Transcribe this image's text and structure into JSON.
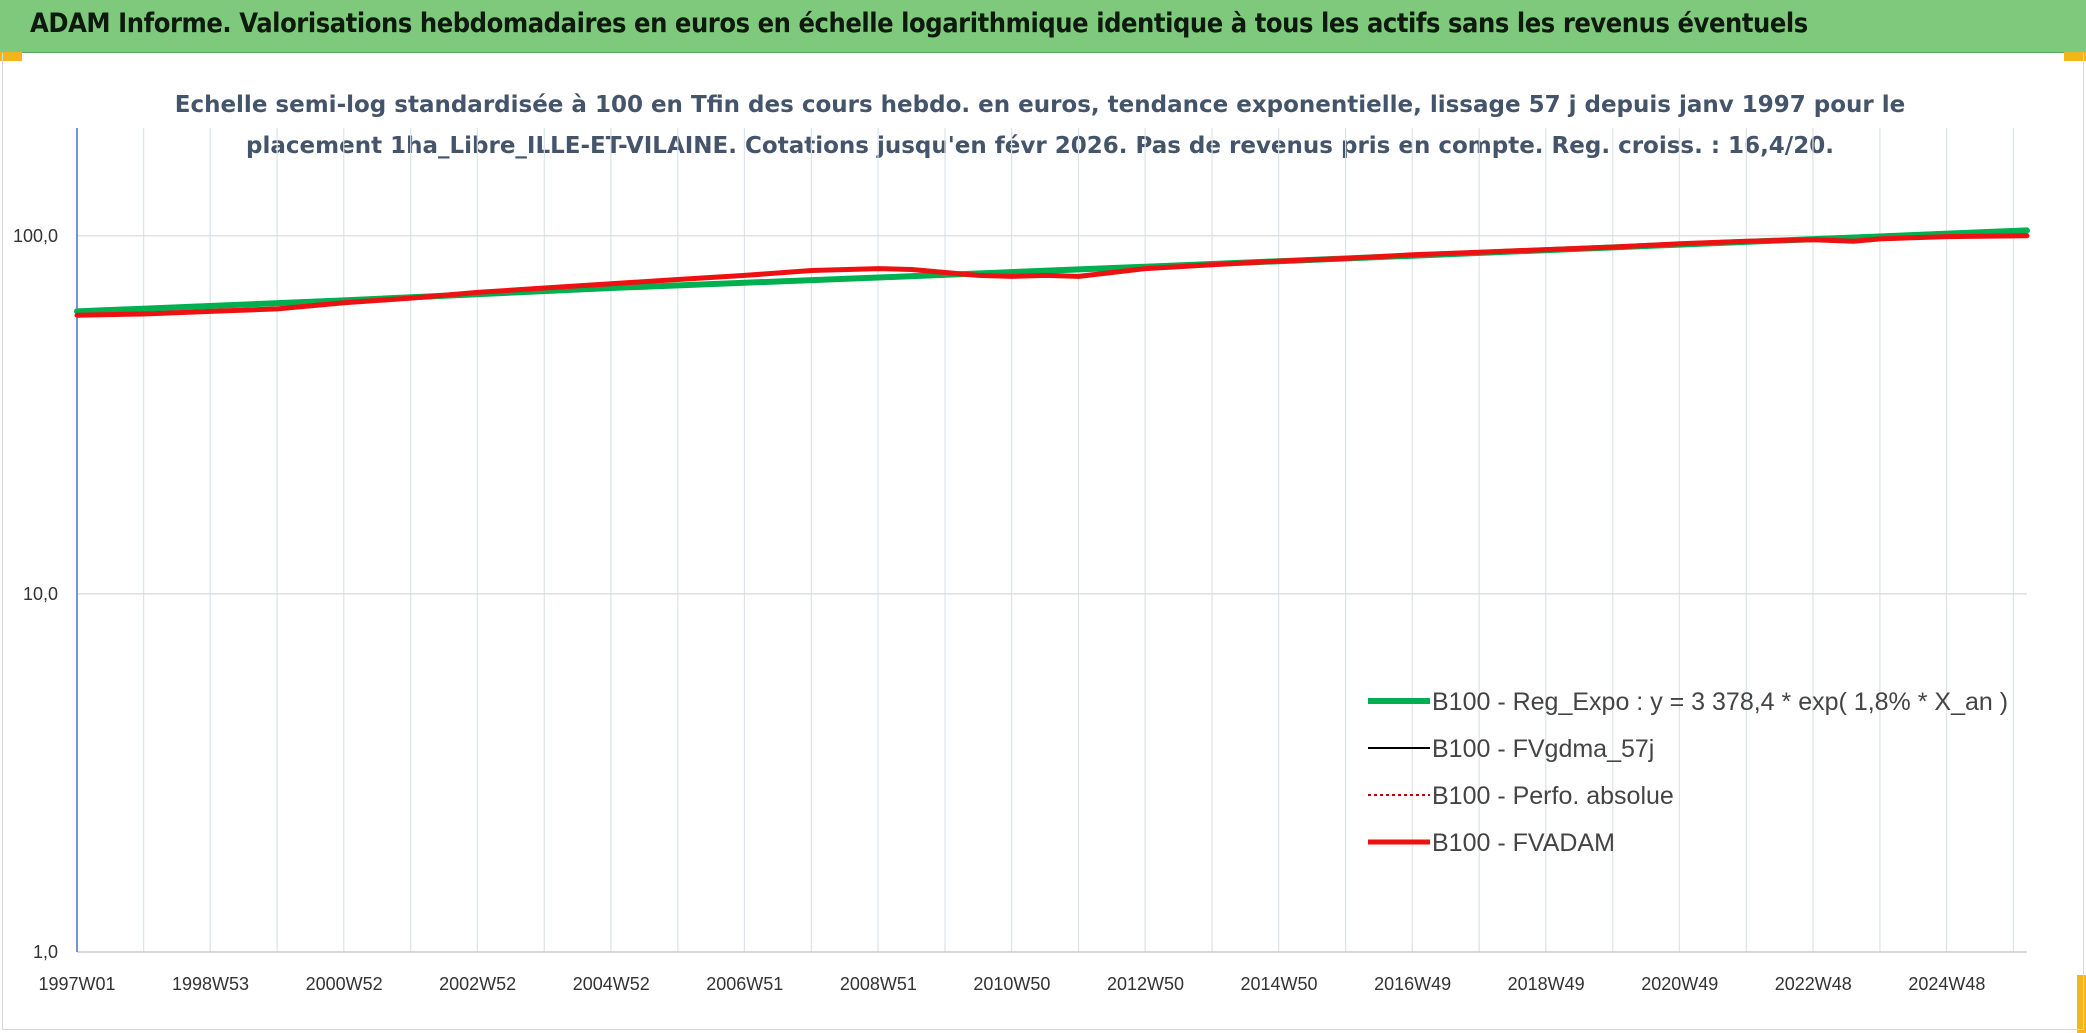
{
  "header": {
    "title": "ADAM Informe. Valorisations hebdomadaires en euros en échelle logarithmique identique à tous les actifs sans les revenus éventuels"
  },
  "colors": {
    "header_bg": "#7fc97c",
    "corner_accent": "#f2b51c",
    "reg_expo": "#00b050",
    "fvgdma": "#000000",
    "perfo": "#c00000",
    "fvadam": "#ee1111"
  },
  "chart_data": {
    "type": "line",
    "title": "Echelle semi-log standardisée à 100 en Tfin des cours hebdo. en euros, tendance exponentielle, lissage 57 j depuis janv 1997 pour le",
    "subtitle": "placement 1ha_Libre_ILLE-ET-VILAINE. Cotations jusqu'en févr 2026. Pas de revenus pris en compte. Reg. croiss. : 16,4/20.",
    "y_scale": "log",
    "ylim": [
      1,
      200
    ],
    "y_ticks": [
      {
        "value": 1,
        "label": "1,0"
      },
      {
        "value": 10,
        "label": "10,0"
      },
      {
        "value": 100,
        "label": "100,0"
      }
    ],
    "x_range": [
      1997.0,
      2026.2
    ],
    "x_ticks": [
      {
        "x": 1997.0,
        "label": "1997W01"
      },
      {
        "x": 1999.0,
        "label": "1998W53"
      },
      {
        "x": 2001.0,
        "label": "2000W52"
      },
      {
        "x": 2003.0,
        "label": "2002W52"
      },
      {
        "x": 2005.0,
        "label": "2004W52"
      },
      {
        "x": 2007.0,
        "label": "2006W51"
      },
      {
        "x": 2009.0,
        "label": "2008W51"
      },
      {
        "x": 2011.0,
        "label": "2010W50"
      },
      {
        "x": 2013.0,
        "label": "2012W50"
      },
      {
        "x": 2015.0,
        "label": "2014W50"
      },
      {
        "x": 2017.0,
        "label": "2016W49"
      },
      {
        "x": 2019.0,
        "label": "2018W49"
      },
      {
        "x": 2021.0,
        "label": "2020W49"
      },
      {
        "x": 2023.0,
        "label": "2022W48"
      },
      {
        "x": 2025.0,
        "label": "2024W48"
      }
    ],
    "grid": true,
    "legend_position": "bottom-right",
    "series": [
      {
        "name": "B100 - Reg_Expo : y = 3 378,4 * exp( 1,8% *  X_an )",
        "style": "thick-green",
        "x": [
          1997.0,
          2001.0,
          2005.0,
          2009.0,
          2013.0,
          2017.0,
          2021.0,
          2026.2
        ],
        "values": [
          61.5,
          66.0,
          71.5,
          76.5,
          82.0,
          88.0,
          94.5,
          103.5
        ]
      },
      {
        "name": "B100 - FVgdma_57j",
        "style": "thin-black",
        "x": [
          1997.0,
          1998.0,
          1999.0,
          2000.0,
          2001.0,
          2002.0,
          2003.0,
          2004.0,
          2005.0,
          2006.0,
          2007.0,
          2008.0,
          2009.0,
          2009.5,
          2010.0,
          2010.5,
          2011.0,
          2011.5,
          2012.0,
          2012.5,
          2013.0,
          2014.0,
          2015.0,
          2016.0,
          2017.0,
          2018.0,
          2019.0,
          2020.0,
          2021.0,
          2022.0,
          2023.0,
          2023.6,
          2024.0,
          2025.0,
          2026.2
        ],
        "values": [
          60.0,
          60.5,
          61.5,
          62.5,
          65.0,
          67.0,
          69.5,
          71.5,
          73.5,
          75.5,
          77.5,
          80.0,
          81.0,
          80.5,
          79.0,
          77.5,
          77.0,
          77.5,
          77.0,
          79.0,
          81.0,
          83.0,
          85.0,
          86.5,
          88.5,
          90.0,
          91.5,
          93.0,
          95.0,
          96.5,
          97.5,
          96.5,
          98.0,
          99.5,
          100.0
        ]
      },
      {
        "name": "B100 - Perfo. absolue",
        "style": "dotted-darkred",
        "x": [
          1997.0,
          1998.0,
          1999.0,
          2000.0,
          2001.0,
          2002.0,
          2003.0,
          2004.0,
          2005.0,
          2006.0,
          2007.0,
          2008.0,
          2009.0,
          2009.5,
          2010.0,
          2010.5,
          2011.0,
          2011.5,
          2012.0,
          2012.5,
          2013.0,
          2014.0,
          2015.0,
          2016.0,
          2017.0,
          2018.0,
          2019.0,
          2020.0,
          2021.0,
          2022.0,
          2023.0,
          2023.6,
          2024.0,
          2025.0,
          2026.2
        ],
        "values": [
          60.0,
          60.5,
          61.5,
          62.5,
          65.0,
          67.0,
          69.5,
          71.5,
          73.5,
          75.5,
          77.5,
          80.0,
          81.0,
          80.5,
          79.0,
          77.5,
          77.0,
          77.5,
          77.0,
          79.0,
          81.0,
          83.0,
          85.0,
          86.5,
          88.5,
          90.0,
          91.5,
          93.0,
          95.0,
          96.5,
          97.5,
          96.5,
          98.0,
          99.5,
          100.0
        ]
      },
      {
        "name": "B100 - FVADAM",
        "style": "thick-red",
        "x": [
          1997.0,
          1998.0,
          1999.0,
          2000.0,
          2001.0,
          2002.0,
          2003.0,
          2004.0,
          2005.0,
          2006.0,
          2007.0,
          2008.0,
          2009.0,
          2009.5,
          2010.0,
          2010.5,
          2011.0,
          2011.5,
          2012.0,
          2012.5,
          2013.0,
          2014.0,
          2015.0,
          2016.0,
          2017.0,
          2018.0,
          2019.0,
          2020.0,
          2021.0,
          2022.0,
          2023.0,
          2023.6,
          2024.0,
          2025.0,
          2026.2
        ],
        "values": [
          60.0,
          60.5,
          61.5,
          62.5,
          65.0,
          67.0,
          69.5,
          71.5,
          73.5,
          75.5,
          77.5,
          80.0,
          81.0,
          80.5,
          79.0,
          77.5,
          77.0,
          77.5,
          77.0,
          79.0,
          81.0,
          83.0,
          85.0,
          86.5,
          88.5,
          90.0,
          91.5,
          93.0,
          95.0,
          96.5,
          97.5,
          96.5,
          98.0,
          99.5,
          100.0
        ]
      }
    ]
  }
}
